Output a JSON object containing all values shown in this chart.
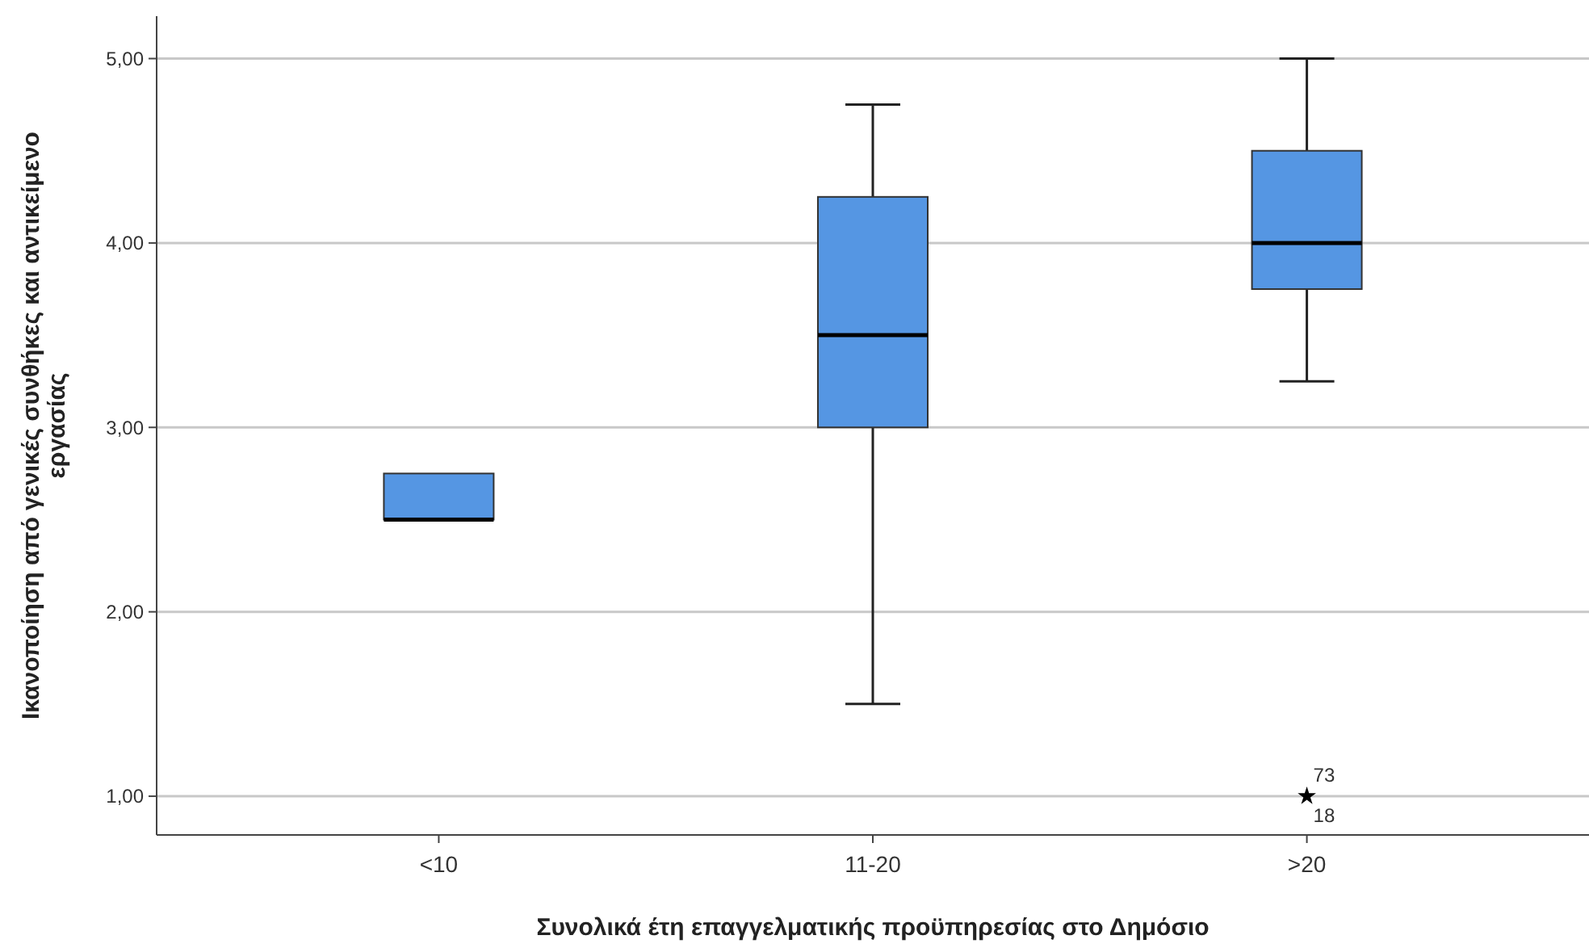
{
  "chart_data": {
    "type": "box",
    "xlabel": "Συνολικά έτη επαγγελματικής προϋπηρεσίας στο Δημόσιο",
    "ylabel": "Ικανοποίηση από γενικές συνθήκες και αντικείμενο εργασίας",
    "categories": [
      "<10",
      "11-20",
      ">20"
    ],
    "color": "#5596e3",
    "marker": "star",
    "grid": "y",
    "ylim": [
      0.79,
      5.23
    ],
    "yticks": [
      {
        "value": 1,
        "label": "1,00"
      },
      {
        "value": 2,
        "label": "2,00"
      },
      {
        "value": 3,
        "label": "3,00"
      },
      {
        "value": 4,
        "label": "4,00"
      },
      {
        "value": 5,
        "label": "5,00"
      }
    ],
    "boxes": [
      {
        "low": 2.5,
        "q1": 2.5,
        "median": 2.5,
        "q3": 2.75,
        "high": 2.75
      },
      {
        "low": 1.5,
        "q1": 3.0,
        "median": 3.5,
        "q3": 4.25,
        "high": 4.75
      },
      {
        "low": 3.25,
        "q1": 3.75,
        "median": 4.0,
        "q3": 4.5,
        "high": 5.0,
        "outliers": [
          1.0
        ]
      }
    ],
    "annotations": [
      "73",
      "18"
    ]
  }
}
